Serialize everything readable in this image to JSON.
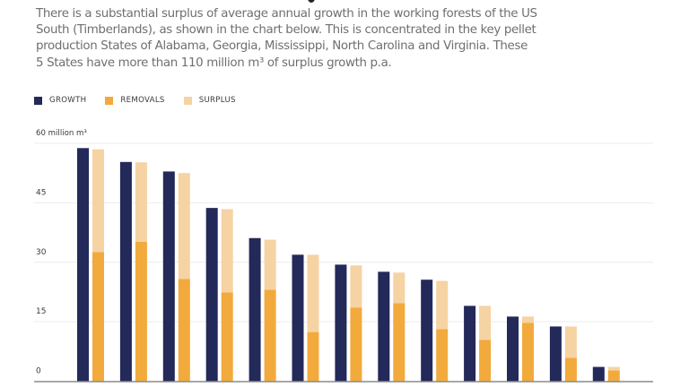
{
  "intro_text": "There is a substantial surplus of average annual growth in the working forests of the US South (Timberlands), as shown in the chart below. This is concentrated in the key pellet production States of Alabama, Georgia, Mississippi, North Carolina and Virginia. These 5 States have more than 110 million m³ of surplus growth p.a.",
  "legend": [
    {
      "label": "GROWTH",
      "color": "#232959"
    },
    {
      "label": "REMOVALS",
      "color": "#F2AA3C"
    },
    {
      "label": "SURPLUS",
      "color": "#F6D3A3"
    }
  ],
  "unit_label": "60 million m³",
  "chart_data": {
    "type": "bar",
    "title": "",
    "xlabel": "",
    "ylabel": "million m³",
    "ylim": [
      0,
      60
    ],
    "yticks": [
      0,
      15,
      30,
      45,
      60
    ],
    "ytick_labels": [
      "0",
      "15",
      "30",
      "45",
      "60 million m³"
    ],
    "grid": true,
    "legend_position": "top-left",
    "categories": [
      "1",
      "2",
      "3",
      "4",
      "5",
      "6",
      "7",
      "8",
      "9",
      "10",
      "11",
      "12",
      "13"
    ],
    "category_labels_visible": false,
    "series": [
      {
        "name": "GROWTH",
        "color": "#232959",
        "values": [
          58.8,
          55.3,
          52.9,
          43.7,
          36.1,
          31.9,
          29.4,
          27.6,
          25.6,
          19.0,
          16.3,
          13.8,
          3.6
        ]
      },
      {
        "name": "REMOVALS",
        "color": "#F2AA3C",
        "stack": "second",
        "values": [
          32.6,
          35.2,
          25.8,
          22.4,
          23.1,
          12.4,
          18.6,
          19.7,
          13.1,
          10.4,
          14.7,
          5.9,
          2.7
        ]
      },
      {
        "name": "SURPLUS",
        "color": "#F6D3A3",
        "stack": "second",
        "values": [
          25.9,
          20.0,
          26.7,
          21.0,
          12.6,
          19.5,
          10.6,
          7.7,
          12.2,
          8.6,
          1.6,
          7.9,
          0.9
        ]
      }
    ]
  }
}
